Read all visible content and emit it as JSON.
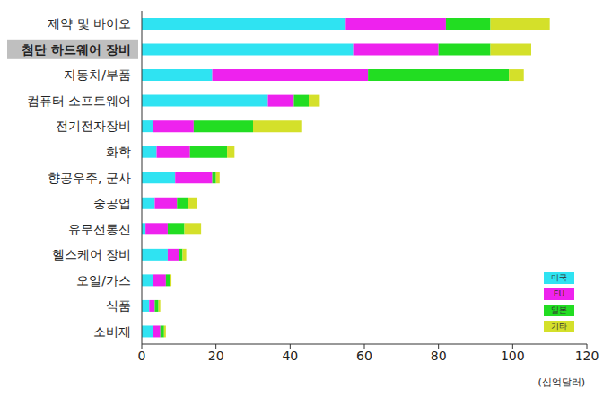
{
  "chart_data": {
    "type": "bar",
    "orientation": "horizontal",
    "stacked": true,
    "grid": false,
    "legend": "lower right",
    "x_label": "(십억달러)",
    "categories": [
      "제약 및 바이오",
      "첨단 하드웨어 장비",
      "자동차/부품",
      "컴퓨터 소프트웨어",
      "전기전자장비",
      "화학",
      "향공우주, 군사",
      "중공업",
      "유무선통신",
      "헬스케어 장비",
      "오일/가스",
      "식품",
      "소비재"
    ],
    "series": [
      {
        "name": "미국",
        "color": "#2fe3f2",
        "values": [
          55,
          57,
          19,
          34,
          3,
          4,
          9,
          3.5,
          1,
          7,
          3,
          2,
          3
        ]
      },
      {
        "name": "EU",
        "color": "#ee22ee",
        "values": [
          27,
          23,
          42,
          7,
          11,
          9,
          10,
          6,
          6,
          3,
          3.5,
          1.5,
          2
        ]
      },
      {
        "name": "일본",
        "color": "#22dd22",
        "values": [
          12,
          14,
          38,
          4,
          16,
          10,
          1,
          3,
          4.5,
          1,
          1,
          1,
          1
        ]
      },
      {
        "name": "기타",
        "color": "#d4e02a",
        "values": [
          16,
          11,
          4,
          3,
          13,
          2,
          1,
          2.5,
          4.5,
          1,
          0.5,
          0.5,
          0.5
        ]
      }
    ],
    "xlim": [
      0,
      120
    ],
    "xticks": [
      0,
      20,
      40,
      60,
      80,
      100,
      120
    ]
  }
}
